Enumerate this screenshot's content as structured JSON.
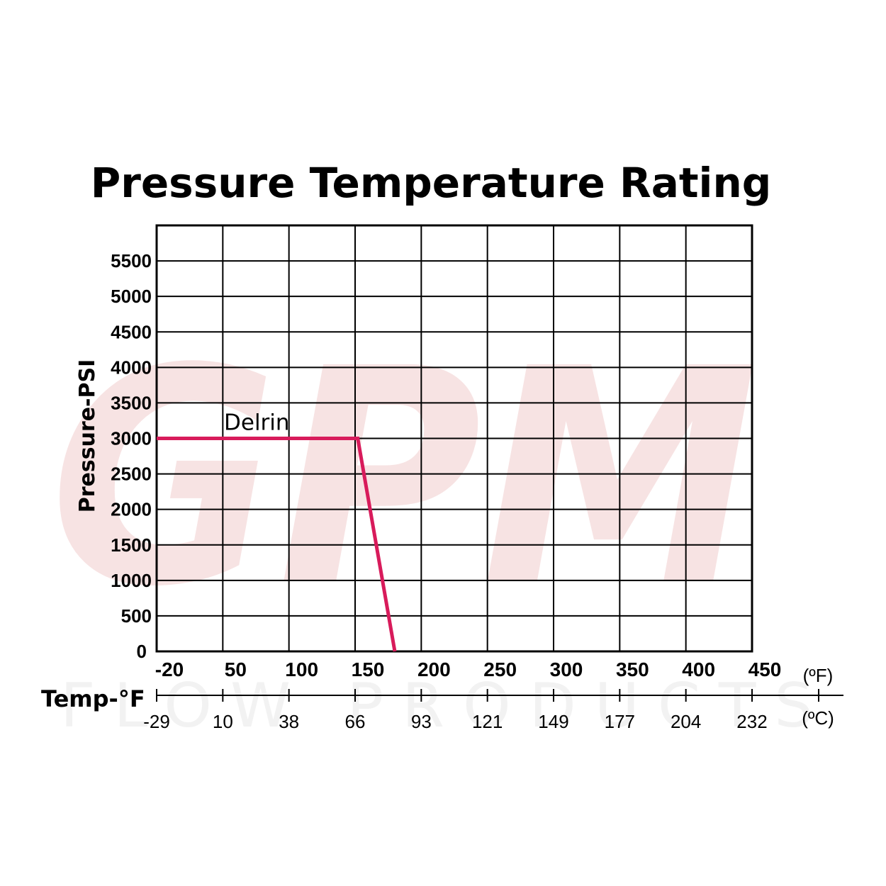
{
  "watermark": {
    "logo_text": "GPM",
    "tagline": "FLOW PRODUCTS"
  },
  "chart_data": {
    "type": "line",
    "title": "Pressure Temperature Rating",
    "ylabel": "Pressure-PSI",
    "xlabel": "Temp-°F",
    "xlim": [
      -20,
      450
    ],
    "ylim": [
      0,
      6000
    ],
    "grid": true,
    "x_ticks_f": [
      -20,
      50,
      100,
      150,
      200,
      250,
      300,
      350,
      400,
      450
    ],
    "x_tick_labels_f": [
      "-20",
      "50",
      "100",
      "150",
      "200",
      "250",
      "300",
      "350",
      "400",
      "450"
    ],
    "x_tick_labels_c": [
      "-29",
      "10",
      "38",
      "66",
      "93",
      "121",
      "149",
      "177",
      "204",
      "232"
    ],
    "y_ticks": [
      0,
      500,
      1000,
      1500,
      2000,
      2500,
      3000,
      3500,
      4000,
      4500,
      5000,
      5500
    ],
    "y_tick_labels": [
      "0",
      "500",
      "1000",
      "1500",
      "2000",
      "2500",
      "3000",
      "3500",
      "4000",
      "4500",
      "5000",
      "5500"
    ],
    "unit_f": "(ºF)",
    "unit_c": "(ºC)",
    "series": [
      {
        "name": "Delrin",
        "x": [
          -20,
          152,
          180
        ],
        "y": [
          3000,
          3000,
          0
        ]
      }
    ],
    "colors": {
      "series": "#d81b5b",
      "grid": "#000000"
    }
  }
}
